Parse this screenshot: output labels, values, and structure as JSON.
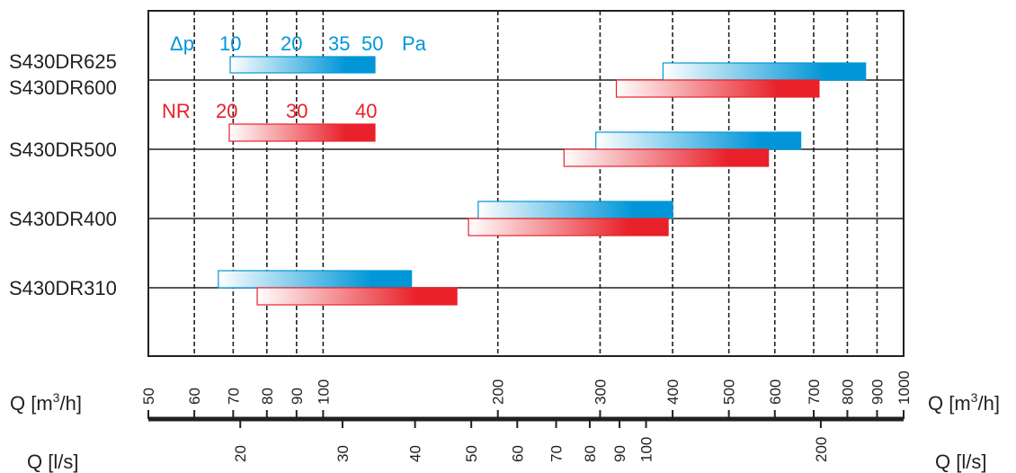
{
  "chart_data": {
    "type": "bar",
    "orientation": "horizontal-range",
    "x_scale": "log",
    "xlim_m3h": [
      50,
      1000
    ],
    "grid": true,
    "models": [
      "S430DR625",
      "S430DR600",
      "S430DR500",
      "S430DR400",
      "S430DR310"
    ],
    "series": [
      {
        "kind": "pressure",
        "color_start": "#ffffff",
        "color_end": "#0096d8",
        "ranges": [
          {
            "model": "S430DR625",
            "from_m3h": 385,
            "to_m3h": 860
          },
          {
            "model": "S430DR500",
            "from_m3h": 295,
            "to_m3h": 665
          },
          {
            "model": "S430DR400",
            "from_m3h": 185,
            "to_m3h": 400
          },
          {
            "model": "S430DR310",
            "from_m3h": 66,
            "to_m3h": 142
          }
        ]
      },
      {
        "kind": "noise",
        "color_start": "#ffffff",
        "color_end": "#e8212a",
        "ranges": [
          {
            "model": "S430DR600",
            "from_m3h": 320,
            "to_m3h": 715
          },
          {
            "model": "S430DR500",
            "from_m3h": 260,
            "to_m3h": 585
          },
          {
            "model": "S430DR400",
            "from_m3h": 178,
            "to_m3h": 393
          },
          {
            "model": "S430DR310",
            "from_m3h": 77,
            "to_m3h": 170
          }
        ]
      }
    ],
    "legend": {
      "pressure": {
        "symbol": "Δp",
        "ticks": [
          "10",
          "20",
          "35",
          "50"
        ],
        "unit": "Pa"
      },
      "noise": {
        "symbol": "NR",
        "ticks": [
          "20",
          "30",
          "40"
        ]
      }
    },
    "axis_m3h": {
      "label": "Q [m",
      "label_sup": "3",
      "label_tail": "/h]",
      "ticks": [
        50,
        60,
        70,
        80,
        90,
        100,
        200,
        300,
        400,
        500,
        600,
        700,
        800,
        900,
        1000
      ]
    },
    "axis_ls": {
      "label": "Q [l/s]",
      "ticks": [
        20,
        30,
        40,
        50,
        60,
        70,
        80,
        90,
        100,
        200
      ]
    }
  }
}
